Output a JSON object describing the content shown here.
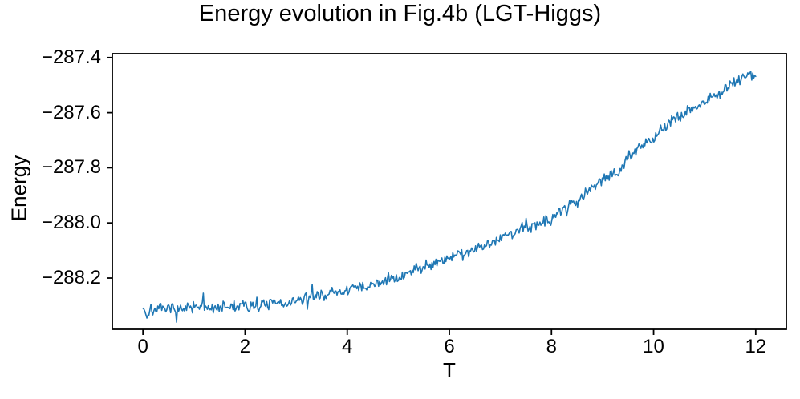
{
  "chart_data": {
    "type": "line",
    "title": "Energy evolution in Fig.4b (LGT-Higgs)",
    "xlabel": "T",
    "ylabel": "Energy",
    "xlim": [
      -0.6,
      12.6
    ],
    "ylim": [
      -288.386,
      -287.386
    ],
    "x_ticks": [
      {
        "value": 0,
        "label": "0"
      },
      {
        "value": 2,
        "label": "2"
      },
      {
        "value": 4,
        "label": "4"
      },
      {
        "value": 6,
        "label": "6"
      },
      {
        "value": 8,
        "label": "8"
      },
      {
        "value": 10,
        "label": "10"
      },
      {
        "value": 12,
        "label": "12"
      }
    ],
    "y_ticks": [
      {
        "value": -287.4,
        "label": "−287.4"
      },
      {
        "value": -287.6,
        "label": "−287.6"
      },
      {
        "value": -287.8,
        "label": "−287.8"
      },
      {
        "value": -288.0,
        "label": "−288.0"
      },
      {
        "value": -288.2,
        "label": "−288.2"
      }
    ],
    "grid": false,
    "legend": false,
    "background_color": "#ffffff",
    "axis_color": "#000000",
    "line_color": "#1f77b4",
    "series": [
      {
        "name": "Energy",
        "t_start": 0.0,
        "t_end": 12.0,
        "n_points": 620,
        "noise_amplitude": 0.032,
        "noise_seed": 7,
        "trend_T": [
          0.0,
          0.07,
          0.15,
          0.3,
          0.5,
          0.75,
          1.0,
          1.5,
          2.0,
          2.5,
          3.0,
          3.5,
          4.0,
          4.5,
          5.0,
          5.5,
          6.0,
          6.5,
          7.0,
          7.5,
          8.0,
          8.5,
          9.0,
          9.3,
          9.5,
          10.0,
          10.5,
          11.0,
          11.5,
          11.8,
          12.0
        ],
        "trend_E": [
          -288.3,
          -288.34,
          -288.312,
          -288.316,
          -288.31,
          -288.312,
          -288.308,
          -288.305,
          -288.301,
          -288.296,
          -288.285,
          -288.262,
          -288.242,
          -288.227,
          -288.198,
          -288.155,
          -288.125,
          -288.095,
          -288.055,
          -288.015,
          -287.985,
          -287.918,
          -287.835,
          -287.818,
          -287.765,
          -287.69,
          -287.612,
          -287.558,
          -287.5,
          -287.464,
          -287.458
        ]
      }
    ]
  }
}
